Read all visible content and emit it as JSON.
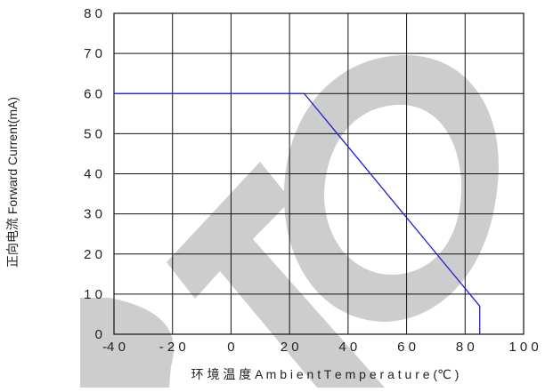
{
  "chart_data": {
    "type": "line",
    "title": "",
    "xlabel": "环 境 温 度   A m b i e n t  T e m p e r a t u r e (℃ )",
    "ylabel": "正向电流 Forward Current(mA)",
    "xlim": [
      -40,
      100
    ],
    "ylim": [
      0,
      80
    ],
    "x_ticks": [
      -40,
      -20,
      0,
      20,
      40,
      60,
      80,
      100
    ],
    "y_ticks": [
      0,
      10,
      20,
      30,
      40,
      50,
      60,
      70,
      80
    ],
    "x_tick_labels": [
      "-4 0",
      "- 2 0",
      "0",
      "2 0",
      "4 0",
      "6 0",
      "8 0",
      "1 0 0"
    ],
    "y_tick_labels": [
      "0",
      "1 0",
      "2 0",
      "3 0",
      "4 0",
      "5 0",
      "6 0",
      "7 0",
      "8 0"
    ],
    "grid": true,
    "legend": "none",
    "series": [
      {
        "color": "#1f1fd6",
        "x": [
          -40,
          25,
          85,
          85
        ],
        "y": [
          60,
          60,
          7,
          0
        ]
      }
    ]
  },
  "watermark": {
    "text": "DTO",
    "color": "#cccccc"
  }
}
